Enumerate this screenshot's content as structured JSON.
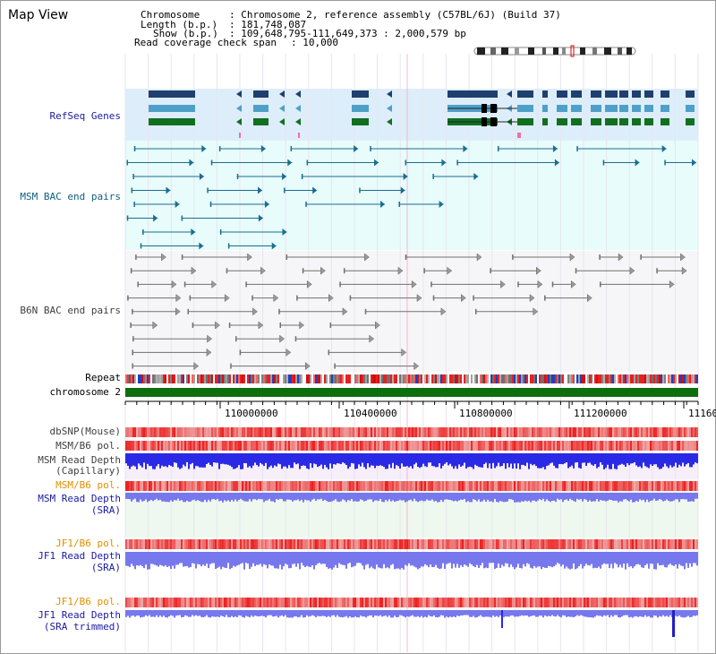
{
  "app": {
    "title": "Map View"
  },
  "info": {
    "chromosome_key": "Chromosome",
    "chromosome_val": ": Chromosome 2, reference assembly (C57BL/6J) (Build 37)",
    "length_key": "Length (b.p.)",
    "length_val": ": 181,748,087",
    "show_key": "Show (b.p.)",
    "show_val": ": 109,648,795-111,649,373 : 2,000,579 bp",
    "span_key": "Read coverage check span",
    "span_val": ": 10,000"
  },
  "tracks": {
    "refseq": "RefSeq Genes",
    "msm_bac": "MSM BAC end pairs",
    "b6n_bac": "B6N BAC end pairs",
    "repeat": "Repeat",
    "chromosome": "chromosome 2",
    "dbsnp": "dbSNP(Mouse)",
    "msm_pol_1": "MSM/B6 pol.",
    "msm_depth_cap_1": "MSM Read Depth",
    "msm_depth_cap_2": "(Capillary)",
    "msm_pol_2": "MSM/B6 pol.",
    "msm_depth_sra_1": "MSM Read Depth",
    "msm_depth_sra_2": "(SRA)",
    "jf1_pol_1": "JF1/B6 pol.",
    "jf1_depth_sra_1": "JF1 Read Depth",
    "jf1_depth_sra_2": "(SRA)",
    "jf1_pol_2": "JF1/B6 pol.",
    "jf1_depth_trim_1": "JF1 Read Depth",
    "jf1_depth_trim_2": "(SRA trimmed)"
  },
  "axis": {
    "ticks": [
      "110000000",
      "110400000",
      "110800000",
      "111200000",
      "11160"
    ]
  },
  "colors": {
    "refseq_bg": "#ddeefa",
    "msm_bg": "#e8fcfc",
    "refseq_dark": "#1f3f6e",
    "refseq_mid": "#4fa0c8",
    "refseq_green": "#107020",
    "msm_feature": "#1a6e8e",
    "b6n_feature": "#707070",
    "chromosome": "#0d6e0d",
    "depth_blue": "#2a2ae6",
    "depth_light": "#7878ee",
    "pol_red": "#ee3030",
    "dbsnp_pink": "#f4a0a0",
    "label_dark_blue": "#1a1aa0",
    "label_teal": "#106080",
    "label_orange": "#e09000",
    "label_gray": "#404040"
  },
  "icons": [
    "chromosome-ideogram-icon"
  ]
}
